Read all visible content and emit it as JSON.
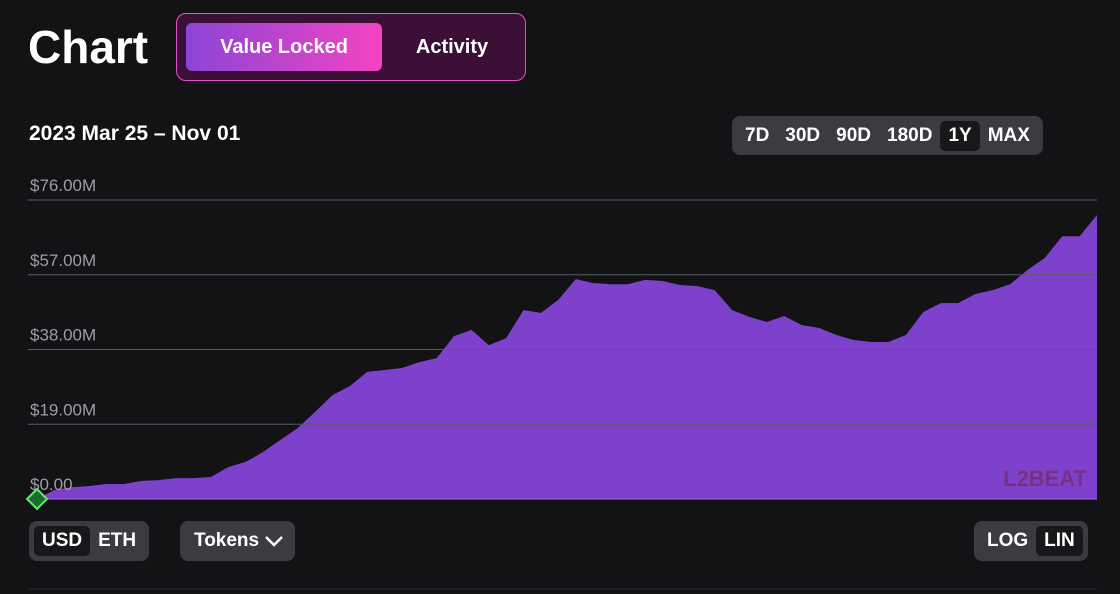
{
  "header": {
    "title": "Chart",
    "tabs": [
      "Value Locked",
      "Activity"
    ]
  },
  "date_range": "2023 Mar 25 – Nov 01",
  "ranges": [
    "7D",
    "30D",
    "90D",
    "180D",
    "1Y",
    "MAX"
  ],
  "units": [
    "USD",
    "ETH"
  ],
  "tokens": "Tokens",
  "scales": [
    "LOG",
    "LIN"
  ],
  "watermark": "L2BEAT",
  "chart_data": {
    "type": "area",
    "color": "#7e41cc",
    "log_scale": false,
    "grid": true,
    "ylim": [
      0,
      76000000
    ],
    "yticks": [
      {
        "value": 0,
        "label": "$0.00"
      },
      {
        "value": 19000000,
        "label": "$19.00M"
      },
      {
        "value": 38000000,
        "label": "$38.00M"
      },
      {
        "value": 57000000,
        "label": "$57.00M"
      },
      {
        "value": 76000000,
        "label": "$76.00M"
      }
    ],
    "values": [
      0,
      2300000,
      3000000,
      3300000,
      3800000,
      3800000,
      4600000,
      4800000,
      5300000,
      5300000,
      5600000,
      8100000,
      9400000,
      11900000,
      15000000,
      18000000,
      22100000,
      26400000,
      28700000,
      32300000,
      32800000,
      33300000,
      34800000,
      35800000,
      41400000,
      43000000,
      39100000,
      40900000,
      48000000,
      47300000,
      50600000,
      55900000,
      54900000,
      54600000,
      54600000,
      55700000,
      55400000,
      54400000,
      54100000,
      53100000,
      48000000,
      46300000,
      45000000,
      46500000,
      44200000,
      43500000,
      41700000,
      40400000,
      39900000,
      39900000,
      41700000,
      47500000,
      49800000,
      49800000,
      52100000,
      53100000,
      54600000,
      58200000,
      61300000,
      66800000,
      66800000,
      72200000
    ]
  }
}
